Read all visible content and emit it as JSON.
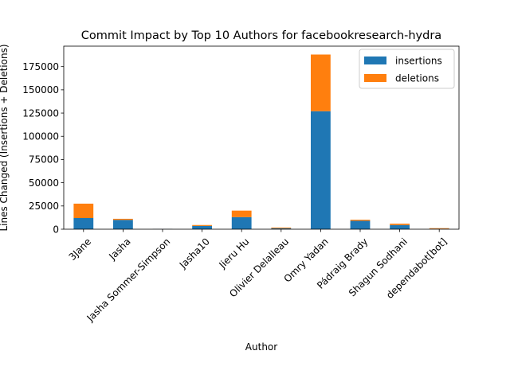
{
  "chart_data": {
    "type": "bar",
    "stacked": true,
    "title": "Commit Impact by Top 10 Authors for facebookresearch-hydra",
    "xlabel": "Author",
    "ylabel": "Lines Changed (Insertions + Deletions)",
    "categories": [
      "3Jane",
      "Jasha",
      "Jasha Sommer-Simpson",
      "Jasha10",
      "Jieru Hu",
      "Olivier Delalleau",
      "Omry Yadan",
      "Pádraig Brady",
      "Shagun Sodhani",
      "dependabot[bot]"
    ],
    "series": [
      {
        "name": "insertions",
        "color": "#1f77b4",
        "values": [
          12000,
          10000,
          300,
          3500,
          13000,
          1000,
          127000,
          9000,
          4500,
          500
        ]
      },
      {
        "name": "deletions",
        "color": "#ff7f0e",
        "values": [
          15500,
          1200,
          100,
          1000,
          7000,
          800,
          61000,
          1200,
          1500,
          600
        ]
      }
    ],
    "ylim": [
      0,
      197000
    ],
    "yticks": [
      0,
      25000,
      50000,
      75000,
      100000,
      125000,
      150000,
      175000
    ],
    "ytick_labels": [
      "0",
      "25000",
      "50000",
      "75000",
      "100000",
      "125000",
      "150000",
      "175000"
    ],
    "legend_position": "top-right",
    "grid": false
  }
}
